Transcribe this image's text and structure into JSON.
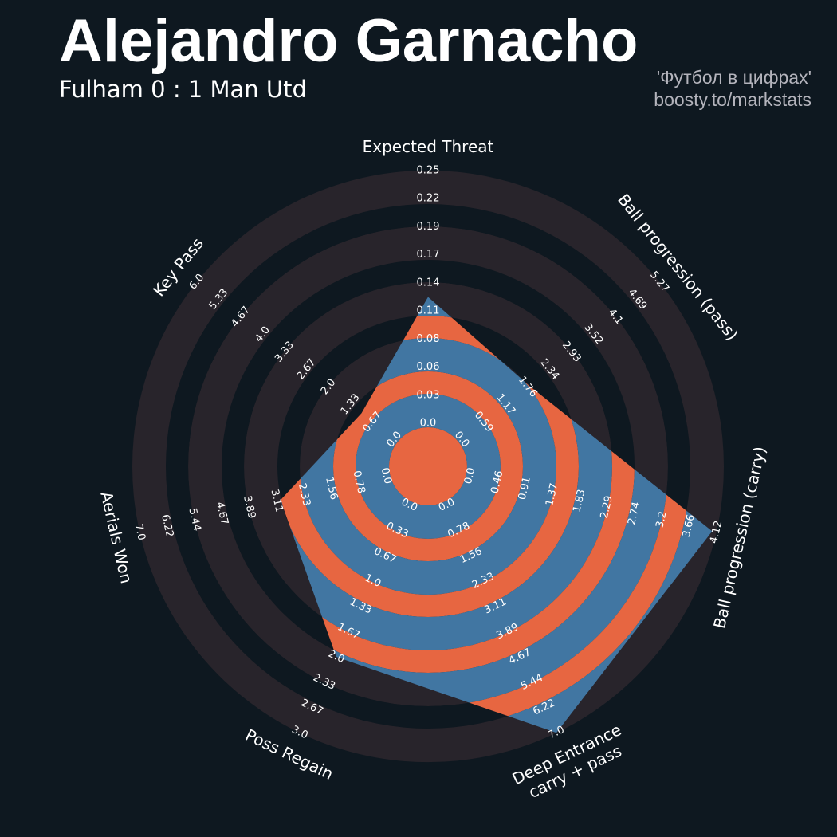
{
  "header": {
    "title": "Alejandro Garnacho",
    "subtitle": "Fulham 0 : 1 Man Utd",
    "credit_line1": "'Футбол в цифрах'",
    "credit_line2": "boosty.to/markstats"
  },
  "chart_data": {
    "type": "radar",
    "title": "Alejandro Garnacho",
    "subtitle": "Fulham 0 : 1 Man Utd",
    "params": [
      [
        "Expected Threat"
      ],
      [
        "Ball progression (pass)"
      ],
      [
        "Ball progression (carry)"
      ],
      [
        "Deep Entrance",
        "carry + pass"
      ],
      [
        "Poss Regain"
      ],
      [
        "Aerials Won"
      ],
      [
        "Key Pass"
      ]
    ],
    "mins": [
      0,
      0,
      0,
      0,
      0,
      0,
      0
    ],
    "maxs": [
      0.25,
      5.27,
      4.12,
      7.0,
      3.0,
      7.0,
      6.0
    ],
    "values": [
      0.125,
      1.8,
      4.05,
      7,
      2,
      3,
      1
    ],
    "tick_labels": [
      [
        "0.0",
        "0.03",
        "0.06",
        "0.08",
        "0.11",
        "0.14",
        "0.17",
        "0.19",
        "0.22",
        "0.25"
      ],
      [
        "0.0",
        "0.59",
        "1.17",
        "1.76",
        "2.34",
        "2.93",
        "3.52",
        "4.1",
        "4.69",
        "5.27"
      ],
      [
        "0.0",
        "0.46",
        "0.91",
        "1.37",
        "1.83",
        "2.29",
        "2.74",
        "3.2",
        "3.66",
        "4.12"
      ],
      [
        "0.0",
        "0.78",
        "1.56",
        "2.33",
        "3.11",
        "3.89",
        "4.67",
        "5.44",
        "6.22",
        "7.0"
      ],
      [
        "0.0",
        "0.33",
        "0.67",
        "1.0",
        "1.33",
        "1.67",
        "2.0",
        "2.33",
        "2.67",
        "3.0"
      ],
      [
        "0.0",
        "0.78",
        "1.56",
        "2.33",
        "3.11",
        "3.89",
        "4.67",
        "5.44",
        "6.22",
        "7.0"
      ],
      [
        "0.0",
        "0.67",
        "1.33",
        "2.0",
        "2.67",
        "3.33",
        "4.0",
        "4.67",
        "5.33",
        "6.0"
      ]
    ],
    "colors": {
      "background": "#0e1820",
      "ring_dark": "#28242b",
      "polygon_blue": "#4176a2",
      "polygon_orange": "#e76641"
    }
  }
}
